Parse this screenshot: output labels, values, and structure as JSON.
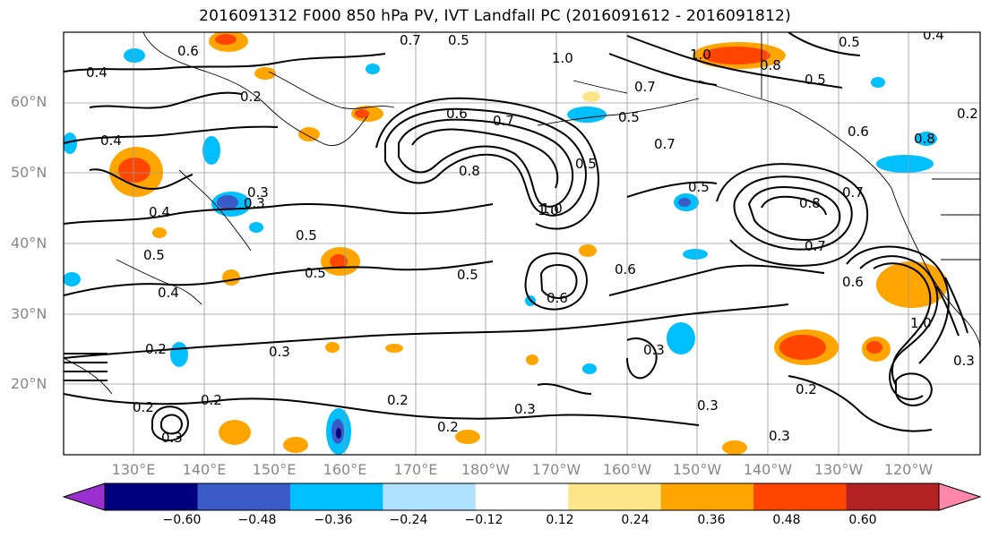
{
  "title": "2016091312 F000 850 hPa PV, IVT Landfall PC (2016091612 - 2016091812)",
  "latitude_labels": [
    "60°N",
    "50°N",
    "40°N",
    "30°N",
    "20°N"
  ],
  "longitude_labels": [
    "130°E",
    "140°E",
    "150°E",
    "160°E",
    "170°E",
    "180°W",
    "170°W",
    "160°W",
    "150°W",
    "140°W",
    "130°W",
    "120°W"
  ],
  "colorbar": {
    "ticks": [
      "−0.60",
      "−0.48",
      "−0.36",
      "−0.24",
      "−0.12",
      "0.12",
      "0.24",
      "0.36",
      "0.48",
      "0.60"
    ],
    "colors": [
      "#9b30d0",
      "#00007f",
      "#3a5ac8",
      "#00bfff",
      "#b0e2ff",
      "#ffffff",
      "#fde68a",
      "#ffa500",
      "#ff4500",
      "#b22222",
      "#ff88aa"
    ]
  },
  "contour_labels": [
    "0.4",
    "0.6",
    "0.7",
    "0.5",
    "0.2",
    "0.4",
    "0.3",
    "0.4",
    "0.5",
    "0.5",
    "0.4",
    "0.2",
    "0.5",
    "0.6",
    "0.7",
    "0.8",
    "1.0",
    "0.5",
    "0.6",
    "0.5",
    "0.3",
    "0.6",
    "1.0",
    "0.8",
    "0.7",
    "0.5",
    "0.8",
    "0.7",
    "0.6",
    "1.0",
    "0.5",
    "0.3",
    "0.2",
    "0.2",
    "0.3",
    "0.2",
    "0.3",
    "0.3",
    "0.2",
    "0.3",
    "0.2",
    "0.3",
    "1.0",
    "0.5",
    "0.3",
    "0.8",
    "0.7",
    "1.0",
    "0.5",
    "0.7",
    "0.4",
    "0.6",
    "0.2"
  ]
}
